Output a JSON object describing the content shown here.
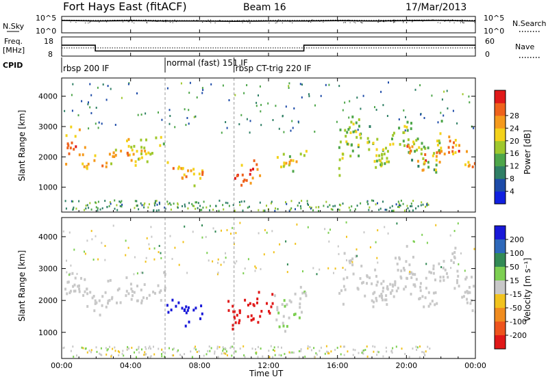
{
  "chart_data": [
    {
      "type": "line",
      "panel": "noise",
      "title": "Fort Hays East (fitACF)",
      "beam_label": "Beam 16",
      "date": "17/Mar/2013",
      "left_label": "N.Sky",
      "right_label": "N.Search",
      "left_ticks": [
        "10^5",
        "10^0"
      ],
      "right_ticks": [
        "10^5",
        "10^0"
      ],
      "series": [
        {
          "name": "N.Sky",
          "x": [
            0,
            2,
            4,
            6,
            8,
            10,
            12,
            14,
            16,
            18,
            20,
            22,
            24
          ],
          "values": [
            3.8,
            3.6,
            3.7,
            3.6,
            3.6,
            3.5,
            3.6,
            3.6,
            3.7,
            3.6,
            3.7,
            3.8,
            3.6
          ]
        },
        {
          "name": "N.Search",
          "x": [
            0,
            2,
            4,
            6,
            8,
            10,
            12,
            14,
            16,
            18,
            20,
            22,
            24
          ],
          "values": [
            3.9,
            3.8,
            3.9,
            3.8,
            3.7,
            3.7,
            3.8,
            3.8,
            3.9,
            3.8,
            3.9,
            3.9,
            3.8
          ]
        }
      ]
    },
    {
      "type": "line",
      "panel": "frequency",
      "left_label": "Freq.",
      "left_unit": "[MHz]",
      "right_label": "Nave",
      "left_ticks": [
        "18",
        "8"
      ],
      "right_ticks": [
        "60",
        "0"
      ],
      "series": [
        {
          "name": "Freq.",
          "x": [
            0,
            1.95,
            1.95,
            14.05,
            14.05,
            24
          ],
          "values": [
            14.3,
            14.3,
            10.5,
            10.5,
            14.3,
            14.3
          ]
        },
        {
          "name": "Nave",
          "x": [
            0,
            24
          ],
          "values": [
            25,
            25
          ]
        }
      ]
    },
    {
      "type": "table",
      "panel": "cpid",
      "label": "CPID",
      "segments": [
        {
          "label": "rbsp 200 IF",
          "start": 0,
          "end": 6
        },
        {
          "label": "normal (fast) 151 IF",
          "start": 6,
          "end": 10
        },
        {
          "label": "rbsp CT-trig 220 IF",
          "start": 10,
          "end": 24
        }
      ]
    },
    {
      "type": "heatmap",
      "panel": "power",
      "ylabel": "Slant Range [km]",
      "yticks": [
        1000,
        2000,
        3000,
        4000
      ],
      "ylim": [
        180,
        4600
      ],
      "xlim": [
        0,
        24
      ],
      "colorbar": {
        "label": "Power [dB]",
        "ticks": [
          "4",
          "8",
          "12",
          "16",
          "20",
          "24",
          "28"
        ],
        "colors": [
          "#1020e0",
          "#1d4ba8",
          "#2f7f65",
          "#4ea64a",
          "#9fc82d",
          "#f3d21b",
          "#f59a1d",
          "#ef621c",
          "#e0191a"
        ]
      },
      "regions": [
        {
          "t0": 0.2,
          "t1": 1.5,
          "r0": 1300,
          "r1": 2800,
          "value": 20
        },
        {
          "t0": 1.8,
          "t1": 4.3,
          "r0": 1500,
          "r1": 2300,
          "value": 18
        },
        {
          "t0": 3.6,
          "t1": 5.9,
          "r0": 1900,
          "r1": 2900,
          "value": 14
        },
        {
          "t0": 6.0,
          "t1": 8.2,
          "r0": 1000,
          "r1": 1900,
          "value": 18
        },
        {
          "t0": 10.0,
          "t1": 11.6,
          "r0": 1000,
          "r1": 2000,
          "value": 22
        },
        {
          "t0": 12.4,
          "t1": 14.2,
          "r0": 1500,
          "r1": 2400,
          "value": 14
        },
        {
          "t0": 16.0,
          "t1": 22.0,
          "r0": 1400,
          "r1": 3300,
          "value": 12
        },
        {
          "t0": 20.0,
          "t1": 24.0,
          "r0": 1600,
          "r1": 2600,
          "value": 20
        }
      ]
    },
    {
      "type": "heatmap",
      "panel": "velocity",
      "ylabel": "Slant Range [km]",
      "xlabel": "Time UT",
      "xticks": [
        "00:00",
        "04:00",
        "08:00",
        "12:00",
        "16:00",
        "20:00",
        "00:00"
      ],
      "yticks": [
        1000,
        2000,
        3000,
        4000
      ],
      "ylim": [
        180,
        4600
      ],
      "xlim": [
        0,
        24
      ],
      "colorbar": {
        "label": "Velocity [m s⁻¹]",
        "ticks": [
          "200",
          "100",
          "50",
          "15",
          "-15",
          "-50",
          "-100",
          "-200"
        ],
        "colors": [
          "#1818d8",
          "#2d68ba",
          "#328a55",
          "#7dcf52",
          "#c8c8c8",
          "#f1c31e",
          "#f08c1f",
          "#ee541d",
          "#e01818"
        ]
      },
      "regions": [
        {
          "t0": 0.1,
          "t1": 6.0,
          "r0": 1600,
          "r1": 2800,
          "value": 0
        },
        {
          "t0": 6.0,
          "t1": 8.1,
          "r0": 1250,
          "r1": 2100,
          "value": 180
        },
        {
          "t0": 9.6,
          "t1": 12.2,
          "r0": 1000,
          "r1": 2300,
          "value": -200
        },
        {
          "t0": 12.2,
          "t1": 14.2,
          "r0": 1200,
          "r1": 2600,
          "value": 10
        },
        {
          "t0": 16.0,
          "t1": 24.0,
          "r0": 1700,
          "r1": 3500,
          "value": 0
        }
      ]
    }
  ]
}
